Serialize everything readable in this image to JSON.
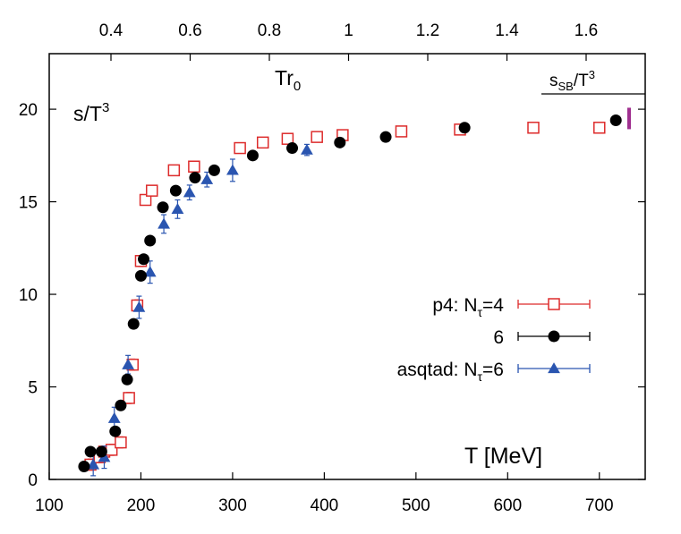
{
  "chart_data": {
    "type": "scatter",
    "title": "",
    "xlabel": "T [MeV]",
    "ylabel": "s/T³",
    "xlim": [
      100,
      750
    ],
    "ylim": [
      0,
      23
    ],
    "x_ticks": [
      100,
      200,
      300,
      400,
      500,
      600,
      700
    ],
    "y_ticks": [
      0,
      5,
      10,
      15,
      20
    ],
    "x2label": "Tr₀",
    "x2_ticks": [
      0.4,
      0.6,
      0.8,
      1,
      1.2,
      1.4,
      1.6
    ],
    "x2_tick_labels": [
      "0.4",
      "0.6",
      "0.8",
      "1",
      "1.2",
      "1.4",
      "1.6"
    ],
    "sb_label": "s_SB/T³",
    "sb_value": 19.5,
    "sb_color": "#a03090",
    "legend_position": "center-right",
    "series": [
      {
        "name": "p4: Nτ=4",
        "label_main": "p4: N",
        "label_sub": "τ",
        "label_tail": "=4",
        "marker": "open-square",
        "color": "#dd2b2b",
        "x": [
          145,
          155,
          160,
          168,
          178,
          187,
          191,
          196,
          200,
          205,
          212,
          236,
          258,
          308,
          333,
          360,
          392,
          420,
          484,
          548,
          628,
          700
        ],
        "y": [
          0.8,
          1.2,
          1.5,
          1.6,
          2.0,
          4.4,
          6.2,
          9.4,
          11.8,
          15.1,
          15.6,
          16.7,
          16.9,
          17.9,
          18.2,
          18.4,
          18.5,
          18.6,
          18.8,
          18.9,
          19.0,
          19.0
        ],
        "yerr": [
          0.3,
          0.3,
          0.3,
          0.3,
          0.3,
          0.3,
          0.3,
          0.3,
          0.3,
          0.2,
          0.2,
          0.2,
          0.2,
          0.2,
          0.2,
          0.2,
          0.2,
          0.2,
          0.2,
          0.2,
          0.2,
          0.2
        ]
      },
      {
        "name": "6",
        "label_main": "6",
        "label_sub": "",
        "label_tail": "",
        "marker": "filled-circle",
        "color": "#000000",
        "x": [
          138,
          145,
          157,
          172,
          178,
          185,
          192,
          200,
          203,
          210,
          224,
          238,
          259,
          280,
          322,
          365,
          417,
          467,
          553,
          718
        ],
        "y": [
          0.7,
          1.5,
          1.5,
          2.6,
          4.0,
          5.4,
          8.4,
          11.0,
          11.9,
          12.9,
          14.7,
          15.6,
          16.3,
          16.7,
          17.5,
          17.9,
          18.2,
          18.5,
          19.0,
          19.4
        ],
        "yerr": [
          0.1,
          0.1,
          0.1,
          0.1,
          0.1,
          0.1,
          0.2,
          0.2,
          0.2,
          0.2,
          0.2,
          0.2,
          0.2,
          0.2,
          0.2,
          0.2,
          0.2,
          0.2,
          0.2,
          0.2
        ]
      },
      {
        "name": "asqtad: Nτ=6",
        "label_main": "asqtad: N",
        "label_sub": "τ",
        "label_tail": "=6",
        "marker": "filled-triangle",
        "color": "#2a55b0",
        "x": [
          148,
          160,
          171,
          186,
          198,
          210,
          225,
          240,
          253,
          272,
          300,
          381
        ],
        "y": [
          0.8,
          1.2,
          3.3,
          6.2,
          9.3,
          11.2,
          13.8,
          14.6,
          15.5,
          16.2,
          16.7,
          17.8
        ],
        "yerr": [
          0.6,
          0.6,
          0.6,
          0.5,
          0.6,
          0.6,
          0.5,
          0.5,
          0.4,
          0.4,
          0.6,
          0.3
        ]
      }
    ]
  }
}
